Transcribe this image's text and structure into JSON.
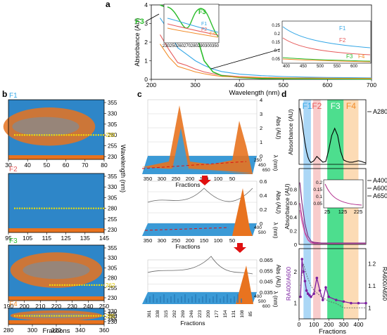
{
  "panels": {
    "a": "a",
    "b": "b",
    "c": "c",
    "d": "d"
  },
  "chart_data": [
    {
      "id": "a",
      "type": "line",
      "xlabel": "Wavelength (nm)",
      "ylabel": "Absorbance (AU)",
      "xlim": [
        200,
        700
      ],
      "ylim": [
        0,
        4
      ],
      "xticks": [
        200,
        300,
        400,
        500,
        600,
        700
      ],
      "yticks": [
        0,
        1,
        2,
        3,
        4
      ],
      "series": [
        {
          "name": "F1",
          "color": "#35a7e6",
          "x": [
            220,
            240,
            260,
            280,
            300,
            320,
            340,
            360,
            400,
            450,
            500,
            550,
            600,
            650,
            700
          ],
          "y": [
            3.3,
            2.6,
            1.7,
            1.35,
            1.0,
            0.75,
            0.55,
            0.42,
            0.28,
            0.2,
            0.15,
            0.12,
            0.1,
            0.09,
            0.08
          ]
        },
        {
          "name": "F2",
          "color": "#e65a5a",
          "x": [
            220,
            240,
            260,
            280,
            300,
            320,
            340,
            360,
            400,
            450,
            500,
            550,
            600,
            650,
            700
          ],
          "y": [
            2.4,
            1.6,
            0.9,
            0.75,
            0.55,
            0.4,
            0.3,
            0.22,
            0.15,
            0.1,
            0.08,
            0.07,
            0.06,
            0.05,
            0.05
          ]
        },
        {
          "name": "F3",
          "color": "#2dbd2d",
          "x": [
            220,
            240,
            250,
            260,
            270,
            280,
            290,
            300,
            320,
            340,
            360,
            400,
            450,
            500,
            600,
            700
          ],
          "y": [
            4.0,
            3.8,
            3.0,
            2.0,
            2.3,
            3.6,
            3.5,
            2.6,
            1.0,
            0.4,
            0.2,
            0.1,
            0.05,
            0.04,
            0.03,
            0.02
          ]
        },
        {
          "name": "F4",
          "color": "#f28c28",
          "x": [
            220,
            240,
            260,
            280,
            300,
            320,
            340,
            360,
            400,
            450,
            500,
            600,
            700
          ],
          "y": [
            1.9,
            1.2,
            0.7,
            0.55,
            0.4,
            0.3,
            0.22,
            0.16,
            0.12,
            0.09,
            0.08,
            0.06,
            0.05
          ]
        }
      ],
      "insets": [
        {
          "xticks": [
            230,
            250,
            260,
            270,
            280,
            290,
            300,
            350
          ],
          "labels": [
            "F1",
            "F2",
            "F3",
            "F4"
          ],
          "marker": "F3"
        },
        {
          "xticks": [
            400,
            450,
            500,
            550,
            600
          ],
          "yticks": [
            0.05,
            0.1,
            0.15,
            0.2,
            0.25
          ],
          "labels": [
            "F1",
            "F2",
            "F3",
            "F4"
          ]
        }
      ]
    },
    {
      "id": "b",
      "type": "heatmap",
      "ylabel": "Wavelength (nm)",
      "xlabel": "Fractions",
      "subplots": [
        {
          "label": "F1",
          "label_color": "#35a7e6",
          "xlim": [
            30,
            80
          ],
          "xticks": [
            30,
            40,
            50,
            60,
            70,
            80
          ],
          "yticks": [
            355,
            330,
            305,
            280,
            255,
            230
          ],
          "marker": "280",
          "marker_value": 280
        },
        {
          "label": "F2",
          "label_color": "#e65a5a",
          "xlim": [
            95,
            145
          ],
          "xticks": [
            95,
            105,
            115,
            125,
            135,
            145
          ],
          "yticks": [
            355,
            330,
            305,
            280,
            255,
            230
          ],
          "marker_value": 280
        },
        {
          "label": "F3",
          "label_color": "#2dbd2d",
          "xlim": [
            190,
            250
          ],
          "xticks": [
            190,
            200,
            210,
            220,
            230,
            240,
            250
          ],
          "yticks": [
            355,
            330,
            305,
            280,
            255,
            230
          ],
          "marker": "262",
          "marker_value": 262
        },
        {
          "label": "F4",
          "label_color": "#f28c28",
          "xlim": [
            280,
            360
          ],
          "xticks": [
            280,
            300,
            320,
            340,
            360
          ],
          "yticks": [
            330,
            305,
            280,
            255,
            230
          ],
          "marker": "285",
          "marker_value": 285
        }
      ]
    },
    {
      "id": "c",
      "type": "area",
      "subplots": [
        {
          "xlabel": "Fractions",
          "ylabel": "Abs (AU)",
          "zlabel": "λ (nm)",
          "xticks": [
            350,
            300,
            250,
            200,
            150,
            100,
            50
          ],
          "yticks": [
            0,
            1,
            2,
            3,
            4
          ],
          "zticks": [
            250,
            450,
            650
          ]
        },
        {
          "xlabel": "Fractions",
          "ylabel": "Abs (AU)",
          "zlabel": "λ (nm)",
          "xticks": [
            350,
            300,
            250,
            200,
            150,
            100,
            50
          ],
          "yticks": [
            0,
            0.2,
            0.4,
            0.6
          ],
          "zticks": [
            400,
            500
          ]
        },
        {
          "xlabel": "Fractions",
          "ylabel": "Abs (AU)",
          "zlabel": "λ (nm)",
          "xticks": [
            361,
            338,
            315,
            292,
            269,
            246,
            223,
            200,
            177,
            154,
            131,
            108,
            85
          ],
          "yticks": [
            0.035,
            0.045,
            0.055,
            0.065
          ],
          "zticks": [
            400,
            500,
            600
          ]
        }
      ]
    },
    {
      "id": "d",
      "type": "line",
      "bands": [
        {
          "label": "F1",
          "color": "#9cd0f5",
          "text_color": "#35a7e6",
          "range": [
            30,
            80
          ]
        },
        {
          "label": "F2",
          "color": "#f7c3c3",
          "text_color": "#e65a5a",
          "range": [
            95,
            145
          ]
        },
        {
          "label": "F3",
          "color": "#2ed87a",
          "text_color": "#ffffff",
          "range": [
            190,
            300
          ]
        },
        {
          "label": "F4",
          "color": "#fbd5a8",
          "text_color": "#f28c28",
          "range": [
            300,
            400
          ]
        }
      ],
      "subplots": [
        {
          "ylabel": "Absorbance (AU)",
          "legend": [
            "A280"
          ],
          "xlim": [
            0,
            450
          ],
          "ylim": [
            0,
            4
          ],
          "series": [
            {
              "name": "A280",
              "x": [
                5,
                10,
                20,
                30,
                40,
                50,
                60,
                70,
                80,
                100,
                120,
                140,
                160,
                180,
                200,
                220,
                240,
                260,
                280,
                300,
                320,
                340,
                360,
                380,
                400,
                420,
                440,
                450
              ],
              "y": [
                3.9,
                3.6,
                3.0,
                2.2,
                1.5,
                0.9,
                0.5,
                0.25,
                0.12,
                0.25,
                0.55,
                0.35,
                0.15,
                0.2,
                1.0,
                2.0,
                2.5,
                2.0,
                0.9,
                0.3,
                0.2,
                0.15,
                0.15,
                0.2,
                0.25,
                0.2,
                0.12,
                0.1
              ]
            }
          ]
        },
        {
          "ylabel": "Absorbance (AU)",
          "legend": [
            "A400",
            "A600",
            "A650"
          ],
          "xlim": [
            0,
            450
          ],
          "ylim": [
            0,
            1.0
          ],
          "yticks": [
            0,
            0.2,
            0.4,
            0.6,
            0.8
          ],
          "series": [
            {
              "name": "A400",
              "x": [
                5,
                20,
                40,
                60,
                80,
                100,
                150,
                200,
                250,
                300,
                350,
                400,
                450
              ],
              "y": [
                0.9,
                0.6,
                0.3,
                0.12,
                0.05,
                0.03,
                0.02,
                0.02,
                0.02,
                0.02,
                0.02,
                0.02,
                0.02
              ]
            },
            {
              "name": "A600",
              "x": [
                5,
                20,
                40,
                60,
                80,
                100,
                150,
                200,
                250,
                300,
                350,
                400,
                450
              ],
              "y": [
                0.6,
                0.4,
                0.18,
                0.07,
                0.03,
                0.02,
                0.01,
                0.01,
                0.01,
                0.01,
                0.01,
                0.01,
                0.01
              ]
            },
            {
              "name": "A650",
              "x": [
                5,
                20,
                40,
                60,
                80,
                100,
                150,
                200,
                250,
                300,
                350,
                400,
                450
              ],
              "y": [
                0.5,
                0.32,
                0.15,
                0.06,
                0.02,
                0.01,
                0.01,
                0.01,
                0.01,
                0.01,
                0.01,
                0.01,
                0.01
              ]
            }
          ],
          "inset": {
            "xticks": [
              25,
              125,
              225
            ],
            "yticks": [
              0.05,
              0.1,
              0.15,
              0.2
            ]
          }
        },
        {
          "ylabel": "RA400/A600",
          "ylabel_right": "RA600/A650",
          "xlim": [
            0,
            450
          ],
          "xticks": [
            0,
            100,
            200,
            300,
            400
          ],
          "yticks_left": [
            1,
            2
          ],
          "yticks_right": [
            1.0,
            1.1,
            1.2
          ],
          "xlabel": "Fractions",
          "series": [
            {
              "name": "RA400/A600",
              "x": [
                10,
                20,
                30,
                40,
                50,
                60,
                70,
                80,
                100,
                120,
                140,
                160,
                180,
                200,
                250,
                300,
                350,
                400,
                450
              ],
              "y": [
                1.2,
                2.4,
                2.0,
                1.7,
                1.4,
                1.3,
                1.25,
                1.2,
                1.3,
                1.8,
                1.4,
                1.1,
                1.5,
                1.2,
                1.1,
                1.05,
                1.0,
                1.0,
                1.0
              ]
            },
            {
              "name": "RA600/A650",
              "x": [
                10,
                30,
                50,
                80,
                100,
                150,
                200,
                250,
                300,
                350,
                400,
                450
              ],
              "y": [
                1.1,
                1.2,
                1.15,
                1.1,
                1.08,
                1.05,
                1.03,
                1.02,
                1.0,
                1.0,
                1.0,
                1.0
              ]
            }
          ]
        }
      ]
    }
  ]
}
